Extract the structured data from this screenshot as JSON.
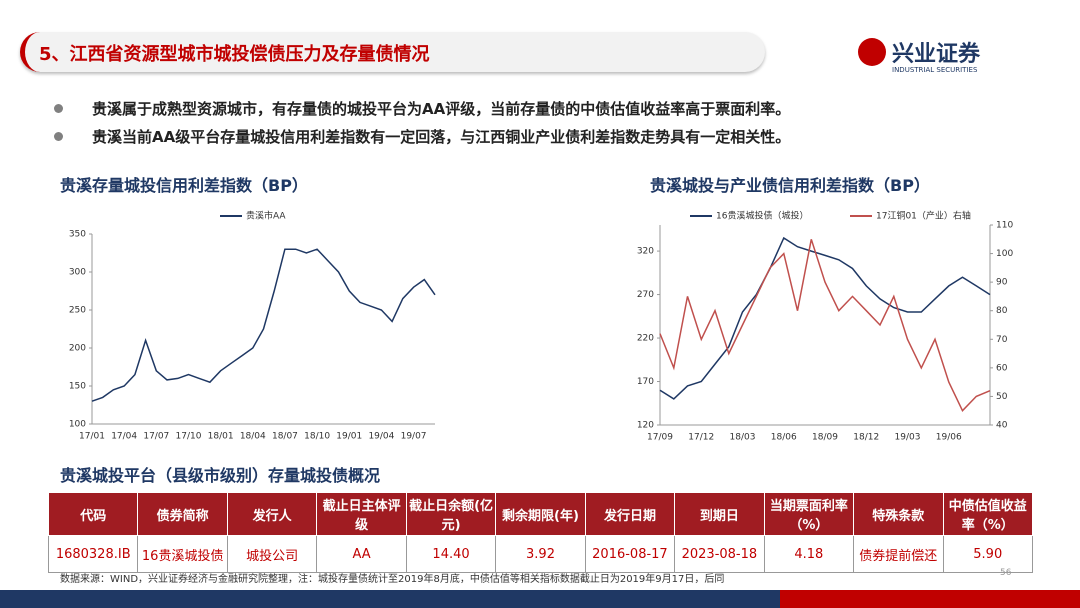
{
  "header": {
    "title": "5、江西省资源型城市城投偿债压力及存量债情况",
    "logo": "兴业证券",
    "logo_sub": "INDUSTRIAL SECURITIES"
  },
  "bullets": [
    "贵溪属于成熟型资源城市，有存量债的城投平台为AA评级，当前存量债的中债估值收益率高于票面利率。",
    "贵溪当前AA级平台存量城投信用利差指数有一定回落，与江西铜业产业债利差指数走势具有一定相关性。"
  ],
  "chart_data": [
    {
      "type": "line",
      "title": "贵溪存量城投信用利差指数（BP）",
      "categories": [
        "17/01",
        null,
        null,
        "17/04",
        null,
        null,
        "17/07",
        null,
        null,
        "17/10",
        null,
        null,
        "18/01",
        null,
        null,
        "18/04",
        null,
        null,
        "18/07",
        null,
        null,
        "18/10",
        null,
        null,
        "19/01",
        null,
        null,
        "19/04",
        null,
        null,
        "19/07",
        null,
        null
      ],
      "series": [
        {
          "name": "贵溪市AA",
          "color": "#1f3864",
          "values": [
            130,
            135,
            145,
            150,
            165,
            210,
            170,
            158,
            160,
            165,
            160,
            155,
            170,
            180,
            190,
            200,
            225,
            275,
            330,
            330,
            325,
            330,
            315,
            300,
            275,
            260,
            255,
            250,
            235,
            265,
            280,
            290,
            270
          ]
        }
      ],
      "ylim": [
        100,
        350
      ],
      "yticks": [
        100,
        150,
        200,
        250,
        300,
        350
      ]
    },
    {
      "type": "line",
      "title": "贵溪城投与产业债信用利差指数（BP）",
      "categories": [
        "17/09",
        null,
        null,
        "17/12",
        null,
        null,
        "18/03",
        null,
        null,
        "18/06",
        null,
        null,
        "18/09",
        null,
        null,
        "18/12",
        null,
        null,
        "19/03",
        null,
        null,
        "19/06",
        null,
        null,
        null
      ],
      "series": [
        {
          "name": "16贵溪城投债（城投）",
          "color": "#1f3864",
          "values": [
            160,
            150,
            165,
            170,
            190,
            210,
            250,
            270,
            300,
            335,
            325,
            320,
            315,
            310,
            300,
            280,
            265,
            255,
            250,
            250,
            265,
            280,
            290,
            280,
            270
          ]
        },
        {
          "name": "17江铜01（产业）右轴",
          "color": "#c0504d",
          "axis": "y2",
          "values": [
            72,
            60,
            85,
            70,
            80,
            65,
            75,
            85,
            95,
            100,
            80,
            105,
            90,
            80,
            85,
            80,
            75,
            85,
            70,
            60,
            70,
            55,
            45,
            50,
            52
          ]
        }
      ],
      "ylim": [
        120,
        350
      ],
      "yticks": [
        120,
        170,
        220,
        270,
        320
      ],
      "y2lim": [
        40,
        110
      ],
      "y2ticks": [
        40,
        50,
        60,
        70,
        80,
        90,
        100,
        110
      ]
    }
  ],
  "table": {
    "title": "贵溪城投平台（县级市级别）存量城投债概况",
    "header": [
      "代码",
      "债券简称",
      "发行人",
      "截止日主体评级",
      "截止日余额(亿元)",
      "剩余期限(年)",
      "发行日期",
      "到期日",
      "当期票面利率（%）",
      "特殊条款",
      "中债估值收益率（%）"
    ],
    "rows": [
      [
        "1680328.IB",
        "16贵溪城投债",
        "城投公司",
        "AA",
        "14.40",
        "3.92",
        "2016-08-17",
        "2023-08-18",
        "4.18",
        "债券提前偿还",
        "5.90"
      ]
    ]
  },
  "footnote": "数据来源：WIND，兴业证券经济与金融研究院整理，注：城投存量债统计至2019年8月底，中债估值等相关指标数据截止日为2019年9月17日，后同",
  "page": "56"
}
